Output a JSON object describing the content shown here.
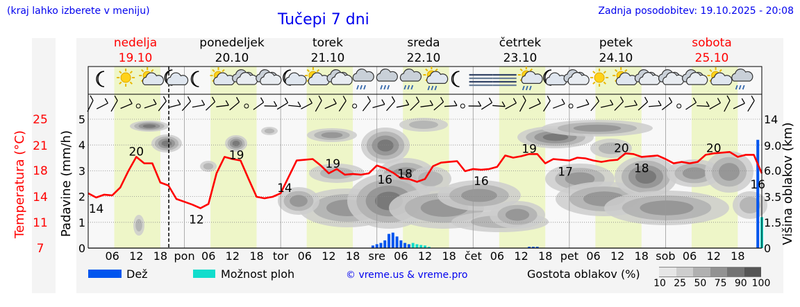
{
  "header": {
    "region_hint": "(kraj lahko izberete v meniju)",
    "title": "Tučepi 7 dni",
    "updated": "Zadnja posodobitev: 19.10.2025 - 20:08"
  },
  "days": [
    {
      "name": "nedelja",
      "date": "19.10",
      "weekend": true
    },
    {
      "name": "ponedeljek",
      "date": "20.10",
      "weekend": false
    },
    {
      "name": "torek",
      "date": "21.10",
      "weekend": false
    },
    {
      "name": "sreda",
      "date": "22.10",
      "weekend": false
    },
    {
      "name": "četrtek",
      "date": "23.10",
      "weekend": false
    },
    {
      "name": "petek",
      "date": "24.10",
      "weekend": false
    },
    {
      "name": "sobota",
      "date": "25.10",
      "weekend": true
    }
  ],
  "colors": {
    "temperature": "#ff0000",
    "rain": "#0055ee",
    "shower": "#11ddcc",
    "daylight": "#eef6c8",
    "link": "#0000ee"
  },
  "legend": {
    "rain_label": "Dež",
    "shower_label": "Možnost ploh",
    "credit": "© vreme.us & vreme.pro",
    "density_title": "Gostota oblakov (%)",
    "density_levels": [
      "10",
      "25",
      "50",
      "75",
      "90",
      "100"
    ],
    "density_colors": [
      "#e6e6e6",
      "#cdcdcd",
      "#b0b0b0",
      "#929292",
      "#737373",
      "#555555"
    ]
  },
  "weather_icons": [
    "moon-icon",
    "sun-icon",
    "sun-cloud-icon",
    "moon-cloud-icon",
    "moon-icon",
    "sun-cloud-icon",
    "cloud-icon",
    "cloud-icon",
    "moon-cloud-icon",
    "sun-cloud-icon",
    "cloud-icon",
    "rain-icon",
    "rain-icon",
    "rain-icon",
    "sun-rain-icon",
    "moon-icon",
    "fog-icon",
    "fog-icon",
    "sun-rain-icon",
    "moon-cloud-icon",
    "cloud-icon",
    "sun-icon",
    "sun-cloud-icon",
    "cloud-icon",
    "cloud-icon",
    "cloud-icon",
    "sun-cloud-icon",
    "rain-icon"
  ],
  "chart_data": {
    "type": "line",
    "title": "Tučepi 7 dni",
    "x_unit": "hours from 19.10 00:00",
    "x_range": [
      0,
      168
    ],
    "x_tick_labels": [
      "06",
      "12",
      "18",
      "pon",
      "06",
      "12",
      "18",
      "tor",
      "06",
      "12",
      "18",
      "sre",
      "06",
      "12",
      "18",
      "čet",
      "06",
      "12",
      "18",
      "pet",
      "06",
      "12",
      "18",
      "sob",
      "06",
      "12",
      "18"
    ],
    "now_hour": 20.1,
    "axes": {
      "temperature": {
        "label": "Temperatura (°C)",
        "ticks": [
          "7",
          "11",
          "14",
          "18",
          "21",
          "25"
        ],
        "range": [
          7,
          25
        ]
      },
      "precipitation": {
        "label": "Padavine (mm/h)",
        "ticks": [
          "0",
          "1",
          "2",
          "3",
          "4",
          "5"
        ],
        "range": [
          0,
          5
        ]
      },
      "cloud_height": {
        "label": "Višina oblakov (km)",
        "ticks": [
          "0",
          "1.5",
          "3.5",
          "6.0",
          "9.0",
          "14"
        ]
      }
    },
    "temperature": {
      "x": [
        0,
        2,
        4,
        6,
        8,
        10,
        12,
        14,
        16,
        18,
        20,
        22,
        24,
        26,
        28,
        30,
        32,
        34,
        36,
        38,
        40,
        42,
        44,
        46,
        48,
        50,
        52,
        54,
        56,
        58,
        60,
        62,
        64,
        66,
        68,
        70,
        72,
        74,
        76,
        78,
        80,
        82,
        84,
        86,
        88,
        90,
        92,
        94,
        96,
        98,
        100,
        102,
        104,
        106,
        108,
        110,
        112,
        114,
        116,
        118,
        120,
        122,
        124,
        126,
        128,
        130,
        132,
        134,
        136,
        138,
        140,
        142,
        144,
        146,
        148,
        150,
        152,
        154,
        156,
        158,
        160,
        162,
        164,
        166,
        168
      ],
      "y": [
        14.7,
        14.1,
        14.5,
        14.4,
        15.5,
        17.8,
        19.8,
        18.9,
        18.9,
        16.2,
        15.8,
        13.9,
        13.5,
        13.1,
        12.6,
        13.2,
        17.5,
        19.8,
        19.5,
        19.3,
        16.7,
        14.2,
        14,
        14.2,
        14.7,
        17,
        19.3,
        19.4,
        19.5,
        18.6,
        17.5,
        18.1,
        17.3,
        17.4,
        17.3,
        17.5,
        18.6,
        18.2,
        17.6,
        16.8,
        16.7,
        16.3,
        16.7,
        18.5,
        19,
        19.1,
        19.2,
        17.8,
        18.1,
        18,
        18.1,
        18.4,
        20,
        19.7,
        19.9,
        20.2,
        20.2,
        18.9,
        19.5,
        19.4,
        19.3,
        19.7,
        19.6,
        19.3,
        19.1,
        19.3,
        19.4,
        20.3,
        20.2,
        19.8,
        19.9,
        20,
        19.5,
        18.9,
        19.1,
        18.9,
        19.1,
        20.1,
        20.3,
        20.4,
        20.5,
        19.8,
        20.1,
        20.1,
        17.5
      ],
      "labels": [
        {
          "x": 2,
          "value": "14"
        },
        {
          "x": 12,
          "value": "20"
        },
        {
          "x": 27,
          "value": "12"
        },
        {
          "x": 37,
          "value": "19"
        },
        {
          "x": 49,
          "value": "14"
        },
        {
          "x": 61,
          "value": "19"
        },
        {
          "x": 74,
          "value": "16"
        },
        {
          "x": 79,
          "value": "18"
        },
        {
          "x": 98,
          "value": "16"
        },
        {
          "x": 110,
          "value": "19"
        },
        {
          "x": 119,
          "value": "17"
        },
        {
          "x": 133,
          "value": "20"
        },
        {
          "x": 138,
          "value": "18"
        },
        {
          "x": 156,
          "value": "20"
        },
        {
          "x": 167,
          "value": "16"
        }
      ]
    },
    "rain_mm": [
      {
        "x": 71,
        "v": 0.1
      },
      {
        "x": 72,
        "v": 0.15
      },
      {
        "x": 73,
        "v": 0.2
      },
      {
        "x": 74,
        "v": 0.3
      },
      {
        "x": 75,
        "v": 0.55
      },
      {
        "x": 76,
        "v": 0.6
      },
      {
        "x": 77,
        "v": 0.45
      },
      {
        "x": 78,
        "v": 0.3
      },
      {
        "x": 79,
        "v": 0.2
      },
      {
        "x": 80,
        "v": 0.15
      },
      {
        "x": 110,
        "v": 0.05
      },
      {
        "x": 111,
        "v": 0.05
      },
      {
        "x": 112,
        "v": 0.05
      },
      {
        "x": 167,
        "v": 4.2
      }
    ],
    "shower_mm": [
      {
        "x": 81,
        "v": 0.2
      },
      {
        "x": 82,
        "v": 0.15
      },
      {
        "x": 83,
        "v": 0.12
      },
      {
        "x": 84,
        "v": 0.1
      },
      {
        "x": 85,
        "v": 0.05
      },
      {
        "x": 168,
        "v": 1.2
      }
    ]
  }
}
